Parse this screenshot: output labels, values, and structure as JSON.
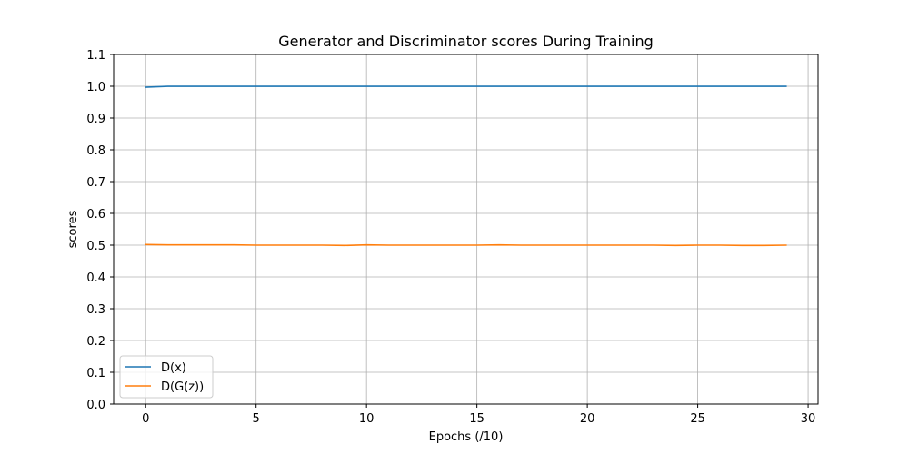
{
  "chart_data": {
    "type": "line",
    "title": "Generator and Discriminator scores During Training",
    "xlabel": "Epochs (/10)",
    "ylabel": "scores",
    "xlim": [
      -1.45,
      30.45
    ],
    "ylim": [
      0.0,
      1.1
    ],
    "xticks": [
      0,
      5,
      10,
      15,
      20,
      25,
      30
    ],
    "yticks": [
      0.0,
      0.1,
      0.2,
      0.3,
      0.4,
      0.5,
      0.6,
      0.7,
      0.8,
      0.9,
      1.0,
      1.1
    ],
    "xtick_labels": [
      "0",
      "5",
      "10",
      "15",
      "20",
      "25",
      "30"
    ],
    "ytick_labels": [
      "0.0",
      "0.1",
      "0.2",
      "0.3",
      "0.4",
      "0.5",
      "0.6",
      "0.7",
      "0.8",
      "0.9",
      "1.0",
      "1.1"
    ],
    "grid": true,
    "legend_position": "lower-left",
    "x": [
      0,
      1,
      2,
      3,
      4,
      5,
      6,
      7,
      8,
      9,
      10,
      11,
      12,
      13,
      14,
      15,
      16,
      17,
      18,
      19,
      20,
      21,
      22,
      23,
      24,
      25,
      26,
      27,
      28,
      29
    ],
    "series": [
      {
        "name": "D(x)",
        "color": "#1f77b4",
        "values": [
          0.997,
          0.9999,
          0.9999,
          0.9999,
          0.9999,
          0.9999,
          0.9999,
          0.9999,
          0.9999,
          0.9999,
          0.9999,
          0.9999,
          0.9999,
          0.9999,
          0.9999,
          0.9999,
          0.9999,
          0.9999,
          0.9999,
          0.9999,
          0.9999,
          0.9999,
          0.9999,
          0.9999,
          0.9999,
          0.9999,
          0.9999,
          0.9999,
          0.9999,
          0.9999
        ]
      },
      {
        "name": "D(G(z))",
        "color": "#ff7f0e",
        "values": [
          0.502,
          0.501,
          0.501,
          0.501,
          0.501,
          0.5,
          0.5,
          0.5,
          0.5,
          0.499,
          0.501,
          0.5,
          0.5,
          0.5,
          0.5,
          0.5,
          0.501,
          0.5,
          0.5,
          0.5,
          0.5,
          0.5,
          0.5,
          0.5,
          0.499,
          0.5,
          0.5,
          0.499,
          0.499,
          0.5
        ]
      }
    ]
  }
}
